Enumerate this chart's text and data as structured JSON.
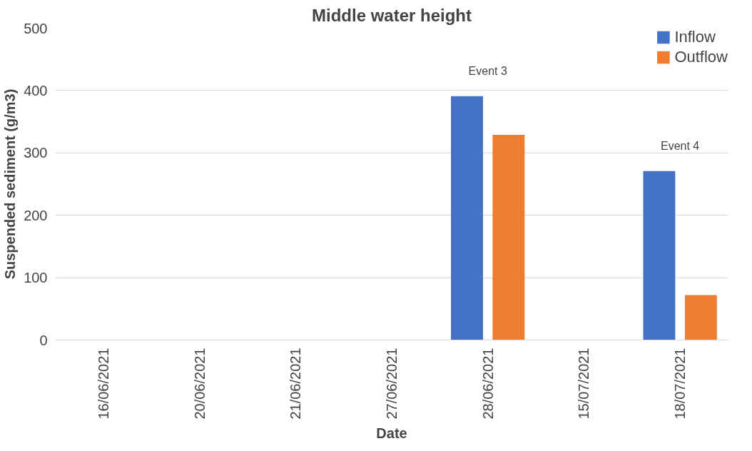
{
  "chart_data": {
    "type": "bar",
    "title": "Middle water height",
    "xlabel": "Date",
    "ylabel": "Suspended sediment (g/m3)",
    "categories": [
      "16/06/2021",
      "20/06/2021",
      "21/06/2021",
      "27/06/2021",
      "28/06/2021",
      "15/07/2021",
      "18/07/2021"
    ],
    "series": [
      {
        "name": "Inflow",
        "color": "#4472c4",
        "values": [
          null,
          null,
          null,
          null,
          391,
          null,
          271
        ]
      },
      {
        "name": "Outflow",
        "color": "#ed7d31",
        "values": [
          null,
          null,
          null,
          null,
          329,
          null,
          72
        ]
      }
    ],
    "ylim": [
      0,
      500
    ],
    "yticks": [
      0,
      100,
      200,
      300,
      400,
      500
    ],
    "grid": "y",
    "legend": "top right",
    "annotations": [
      "Event 3",
      "Event 4"
    ]
  }
}
